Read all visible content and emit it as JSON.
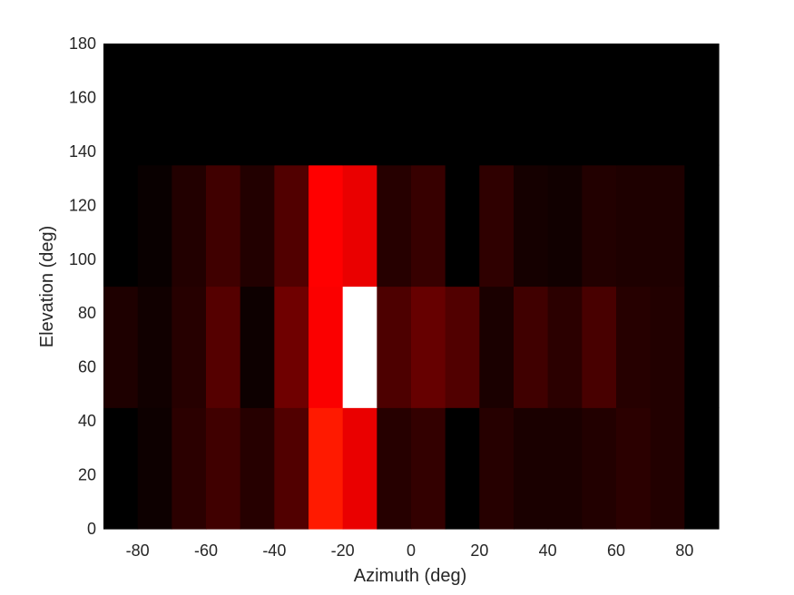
{
  "chart_data": {
    "type": "heatmap",
    "title": "",
    "xlabel": "Azimuth (deg)",
    "ylabel": "Elevation (deg)",
    "xlim": [
      -90,
      90
    ],
    "ylim": [
      0,
      180
    ],
    "x_ticks": [
      "-80",
      "-60",
      "-40",
      "-20",
      "0",
      "20",
      "40",
      "60",
      "80"
    ],
    "y_ticks": [
      "0",
      "20",
      "40",
      "60",
      "80",
      "100",
      "120",
      "140",
      "160",
      "180"
    ],
    "x_edges": [
      -90,
      -80,
      -70,
      -60,
      -50,
      -40,
      -30,
      -20,
      -10,
      0,
      10,
      20,
      30,
      40,
      50,
      60,
      70,
      80,
      90
    ],
    "y_edges": [
      0,
      45,
      90,
      135,
      180
    ],
    "colormap": "hot",
    "rows": [
      {
        "y_range": [
          0,
          45
        ],
        "values": [
          0.0,
          0.03,
          0.1,
          0.15,
          0.09,
          0.19,
          0.63,
          0.55,
          0.09,
          0.12,
          0.0,
          0.09,
          0.06,
          0.06,
          0.08,
          0.1,
          0.08,
          0.0
        ]
      },
      {
        "y_range": [
          45,
          90
        ],
        "values": [
          0.07,
          0.04,
          0.09,
          0.2,
          0.03,
          0.26,
          0.59,
          1.0,
          0.18,
          0.24,
          0.19,
          0.06,
          0.15,
          0.1,
          0.17,
          0.09,
          0.08,
          0.0
        ]
      },
      {
        "y_range": [
          90,
          135
        ],
        "values": [
          0.0,
          0.02,
          0.08,
          0.15,
          0.08,
          0.19,
          0.6,
          0.55,
          0.09,
          0.13,
          0.0,
          0.11,
          0.05,
          0.04,
          0.08,
          0.07,
          0.07,
          0.0
        ]
      },
      {
        "y_range": [
          135,
          180
        ],
        "values": [
          0.0,
          0.0,
          0.0,
          0.0,
          0.0,
          0.0,
          0.0,
          0.0,
          0.0,
          0.0,
          0.0,
          0.0,
          0.0,
          0.0,
          0.0,
          0.0,
          0.0,
          0.0
        ]
      }
    ],
    "grid": false,
    "colors": {
      "background": "#ffffff",
      "text": "#262626",
      "axes": "#262626"
    }
  }
}
